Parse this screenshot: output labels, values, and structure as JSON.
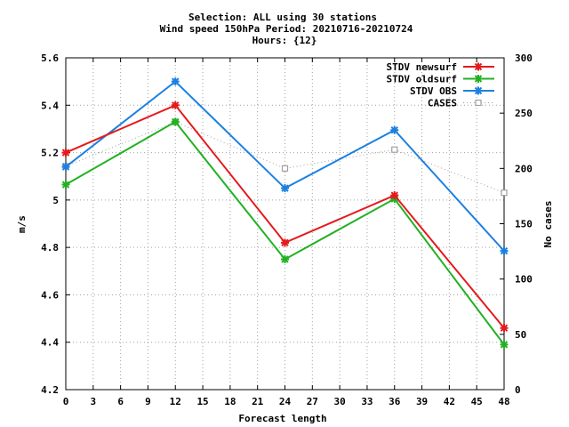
{
  "chart_data": {
    "type": "line",
    "title_lines": [
      "Selection: ALL using    30 stations",
      "Wind speed 150hPa   Period: 20210716-20210724",
      "Hours: {12}"
    ],
    "xlabel": "Forecast length",
    "ylabel": "m/s",
    "y2label": "No cases",
    "x_ticks": [
      0,
      3,
      6,
      9,
      12,
      15,
      18,
      21,
      24,
      27,
      30,
      33,
      36,
      39,
      42,
      45,
      48
    ],
    "xlim": [
      0,
      48
    ],
    "y_ticks": [
      4.2,
      4.4,
      4.6,
      4.8,
      5,
      5.2,
      5.4,
      5.6
    ],
    "ylim": [
      4.2,
      5.6
    ],
    "y2_ticks": [
      0,
      50,
      100,
      150,
      200,
      250,
      300
    ],
    "y2lim": [
      0,
      300
    ],
    "grid": true,
    "legend_position": "top-right",
    "x": [
      0,
      12,
      24,
      36,
      48
    ],
    "series": [
      {
        "name": "STDV newsurf",
        "axis": "left",
        "color": "#e41a1c",
        "values": [
          5.2,
          5.4,
          4.82,
          5.02,
          4.46
        ]
      },
      {
        "name": "STDV oldsurf",
        "axis": "left",
        "color": "#22b122",
        "values": [
          5.065,
          5.33,
          4.75,
          5.005,
          4.39
        ]
      },
      {
        "name": "STDV OBS",
        "axis": "left",
        "color": "#1b80e0",
        "values": [
          5.14,
          5.5,
          5.05,
          5.295,
          4.785
        ]
      },
      {
        "name": "CASES",
        "axis": "right",
        "color": "#a0a0a0",
        "style": "dotted",
        "values": [
          202,
          242,
          200,
          217,
          178
        ]
      }
    ]
  }
}
